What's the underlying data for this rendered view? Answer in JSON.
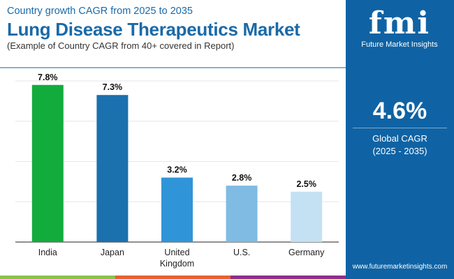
{
  "header": {
    "subtitle": "Country growth CAGR from 2025 to 2035",
    "title": "Lung Disease Therapeutics Market",
    "note": "(Example of Country CAGR from 40+ covered in Report)"
  },
  "panel": {
    "logo_text": "fmi",
    "brand": "Future Market Insights",
    "cagr_value": "4.6%",
    "cagr_label": "Global CAGR",
    "cagr_period": "(2025 - 2035)",
    "url": "www.futuremarketinsights.com",
    "bg": "#0f63a4"
  },
  "stripes": [
    "#8bc34a",
    "#e8622c",
    "#8e2e8e"
  ],
  "chart_data": {
    "type": "bar",
    "categories": [
      "India",
      "Japan",
      "United Kingdom",
      "U.S.",
      "Germany"
    ],
    "values": [
      7.8,
      7.3,
      3.2,
      2.8,
      2.5
    ],
    "labels": [
      "7.8%",
      "7.3%",
      "3.2%",
      "2.8%",
      "2.5%"
    ],
    "colors": [
      "#12ac3c",
      "#1b70ae",
      "#2f95d8",
      "#7fbbe3",
      "#c4e1f3"
    ],
    "ylim": [
      0,
      8
    ],
    "grid": true
  }
}
